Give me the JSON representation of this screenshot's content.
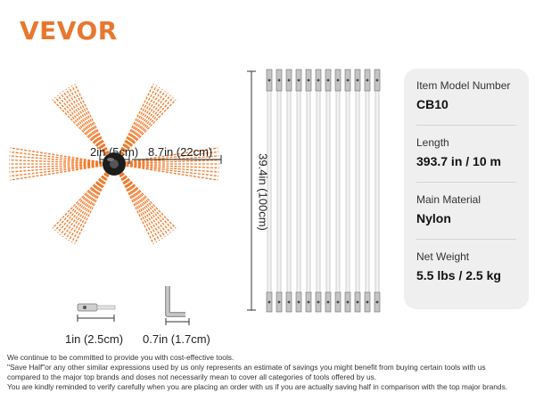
{
  "brand": {
    "logo_text": "VEVOR",
    "color": "#e8772e"
  },
  "brush_dimensions": {
    "hub_width": "2in (5cm)",
    "bristle_length": "8.7in (22cm)"
  },
  "rod_dimension": "39.4in (100cm)",
  "accessories": {
    "connector_size": "1in (2.5cm)",
    "wrench_size": "0.7in (1.7cm)"
  },
  "specs": [
    {
      "label": "Item Model Number",
      "value": "CB10"
    },
    {
      "label": "Length",
      "value": "393.7 in / 10 m"
    },
    {
      "label": "Main Material",
      "value": "Nylon"
    },
    {
      "label": "Net Weight",
      "value": "5.5 lbs / 2.5 kg"
    }
  ],
  "disclaimer": [
    "We continue to be committed to provide you with cost-effective tools.",
    "\"Save Half\"or any other similar expressions used by us only represents an estimate of savings you might benefit from buying certain tools with us",
    "compared to the major top brands and doses not necessarily mean to cover all categories of tools offered by us.",
    "You are kindly reminded to verify carefully when you are placing an order with us if you are actually saving half in comparison with the top major brands."
  ]
}
